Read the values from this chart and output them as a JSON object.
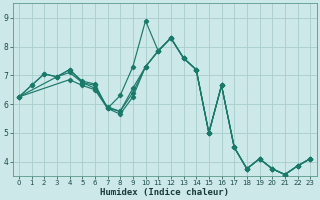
{
  "xlabel": "Humidex (Indice chaleur)",
  "background_color": "#cce8e8",
  "grid_color": "#aacccc",
  "line_color": "#1a7a6a",
  "xlim": [
    -0.5,
    23.5
  ],
  "ylim": [
    3.5,
    9.5
  ],
  "xticks": [
    0,
    1,
    2,
    3,
    4,
    5,
    6,
    7,
    8,
    9,
    10,
    11,
    12,
    13,
    14,
    15,
    16,
    17,
    18,
    19,
    20,
    21,
    22,
    23
  ],
  "yticks": [
    4,
    5,
    6,
    7,
    8,
    9
  ],
  "lines": [
    {
      "x": [
        0,
        1,
        2,
        3,
        4,
        5,
        6,
        7,
        8,
        9,
        10,
        11,
        12,
        13,
        14,
        15,
        16,
        17,
        18,
        19,
        20,
        21,
        22,
        23
      ],
      "y": [
        6.25,
        6.65,
        7.05,
        6.95,
        7.2,
        6.8,
        6.7,
        5.85,
        6.3,
        7.3,
        8.9,
        7.85,
        8.3,
        7.6,
        7.2,
        5.0,
        6.65,
        4.5,
        3.75,
        4.1,
        3.75,
        3.55,
        3.85,
        4.1
      ]
    },
    {
      "x": [
        0,
        1,
        2,
        3,
        4,
        5,
        6,
        7,
        8,
        9,
        10,
        11,
        12,
        13,
        14,
        15,
        16,
        17,
        18,
        19,
        20,
        21,
        22,
        23
      ],
      "y": [
        6.25,
        6.65,
        7.05,
        6.95,
        7.2,
        6.75,
        6.65,
        5.85,
        5.75,
        6.55,
        7.3,
        7.85,
        8.3,
        7.6,
        7.2,
        5.0,
        6.65,
        4.5,
        3.75,
        4.1,
        3.75,
        3.55,
        3.85,
        4.1
      ]
    },
    {
      "x": [
        0,
        3,
        4,
        5,
        6,
        7,
        8,
        9,
        10,
        11,
        12,
        13,
        14,
        15,
        16,
        17,
        18,
        19,
        20,
        21,
        22,
        23
      ],
      "y": [
        6.25,
        6.95,
        7.1,
        6.75,
        6.55,
        5.9,
        5.75,
        6.4,
        7.3,
        7.85,
        8.3,
        7.6,
        7.2,
        5.0,
        6.65,
        4.5,
        3.75,
        4.1,
        3.75,
        3.55,
        3.85,
        4.1
      ]
    },
    {
      "x": [
        0,
        4,
        5,
        6,
        7,
        8,
        9,
        10,
        11,
        12,
        13,
        14,
        15,
        16,
        17,
        18,
        19,
        20,
        21,
        22,
        23
      ],
      "y": [
        6.25,
        6.85,
        6.65,
        6.5,
        5.85,
        5.65,
        6.25,
        7.3,
        7.85,
        8.3,
        7.6,
        7.2,
        5.0,
        6.65,
        4.5,
        3.75,
        4.1,
        3.75,
        3.55,
        3.85,
        4.1
      ]
    }
  ]
}
